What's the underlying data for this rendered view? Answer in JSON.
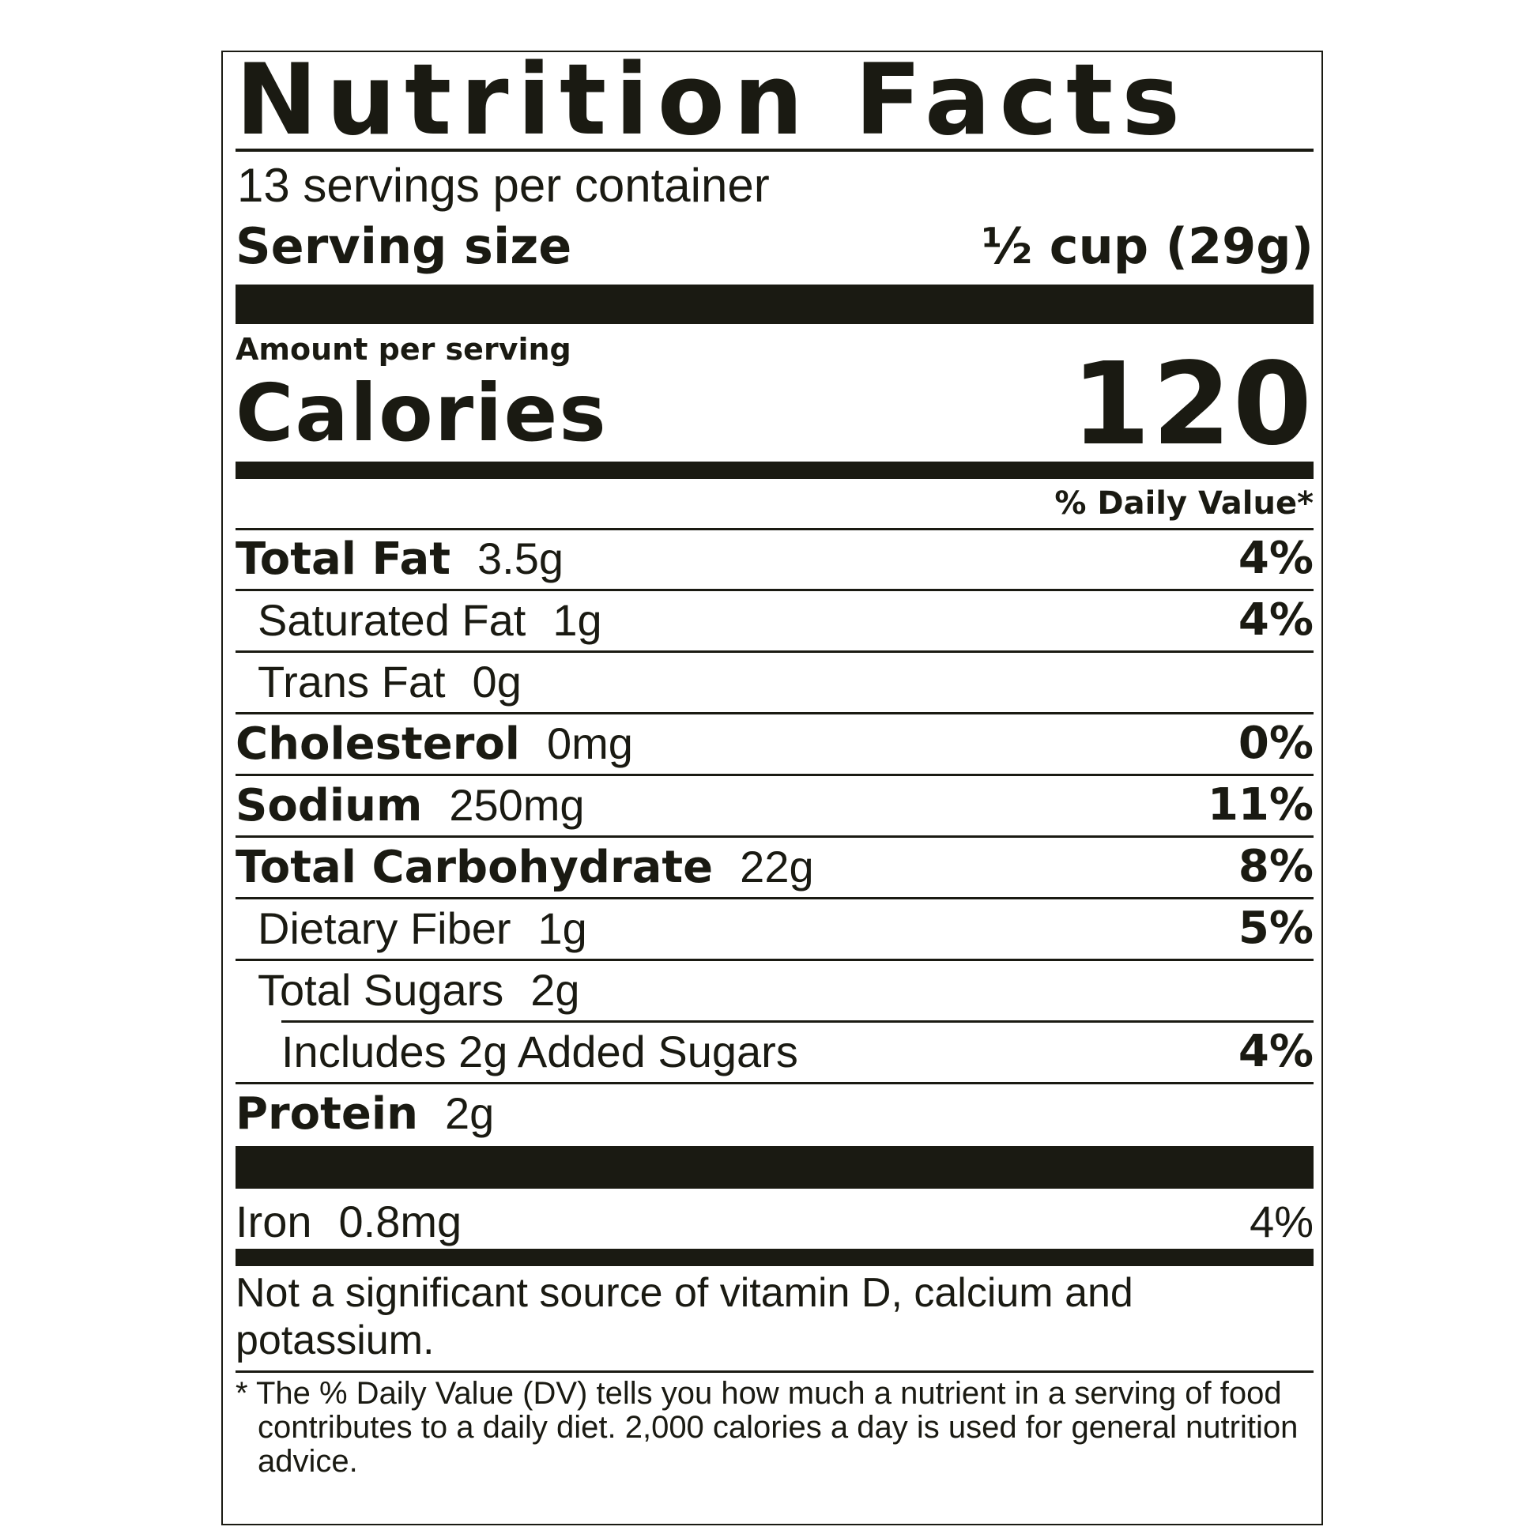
{
  "title": "Nutrition Facts",
  "servings_per_container": "13 servings per container",
  "serving_size_label": "Serving size",
  "serving_size_value": "½ cup (29g)",
  "amount_per_serving": "Amount per serving",
  "calories_label": "Calories",
  "calories_value": "120",
  "daily_value_header": "% Daily Value*",
  "nutrients": [
    {
      "name": "Total Fat",
      "amount": "3.5g",
      "dv": "4%"
    },
    {
      "name": "Saturated Fat",
      "amount": "1g",
      "dv": "4%"
    },
    {
      "name": "Trans Fat",
      "amount": "0g",
      "dv": ""
    },
    {
      "name": "Cholesterol",
      "amount": "0mg",
      "dv": "0%"
    },
    {
      "name": "Sodium",
      "amount": "250mg",
      "dv": "11%"
    },
    {
      "name": "Total Carbohydrate",
      "amount": "22g",
      "dv": "8%"
    },
    {
      "name": "Dietary Fiber",
      "amount": "1g",
      "dv": "5%"
    },
    {
      "name": "Total Sugars",
      "amount": "2g",
      "dv": ""
    },
    {
      "name": "Includes 2g Added Sugars",
      "amount": "",
      "dv": "4%"
    },
    {
      "name": "Protein",
      "amount": "2g",
      "dv": ""
    }
  ],
  "iron": {
    "name": "Iron",
    "amount": "0.8mg",
    "dv": "4%"
  },
  "not_significant": "Not a significant source of vitamin D, calcium and potassium.",
  "footnote": "* The % Daily Value (DV) tells you how much a nutrient in a serving of food contributes to a daily diet. 2,000 calories a day is used for general nutrition advice.",
  "colors": {
    "ink": "#1a1a12",
    "background": "#ffffff"
  }
}
